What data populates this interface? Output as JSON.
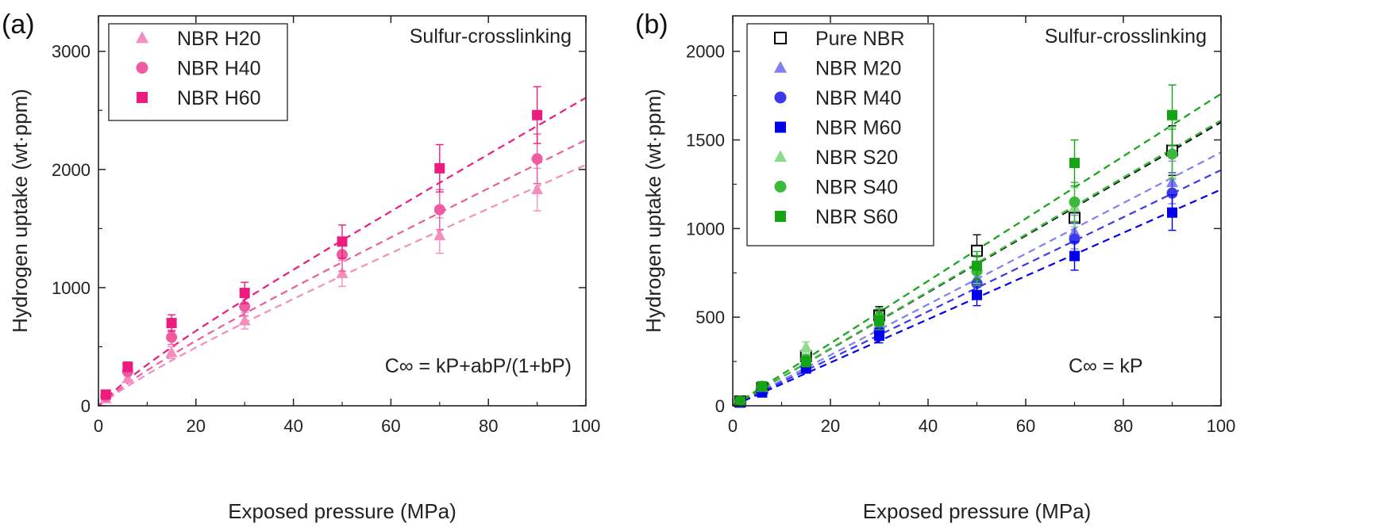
{
  "chart_data": [
    {
      "type": "scatter",
      "panel_label": "(a)",
      "xlabel": "Exposed pressure (MPa)",
      "ylabel": "Hydrogen uptake (wt·ppm)",
      "xlim": [
        0,
        100
      ],
      "ylim": [
        0,
        3300
      ],
      "xticks": [
        0,
        20,
        40,
        60,
        80,
        100
      ],
      "yticks": [
        0,
        1000,
        2000,
        3000
      ],
      "grid": false,
      "legend_position": "top-left",
      "annotation_top": "Sulfur-crosslinking",
      "annotation_bottom": "C∞ = kP+abP/(1+bP)",
      "series": [
        {
          "name": "NBR H20",
          "marker": "triangle",
          "color": "#f58dbd",
          "filled": true,
          "x": [
            1.5,
            6,
            15,
            30,
            50,
            70,
            90
          ],
          "y": [
            60,
            230,
            450,
            720,
            1120,
            1440,
            1830
          ],
          "err": [
            20,
            30,
            50,
            70,
            110,
            150,
            180
          ],
          "fit": {
            "k": 18,
            "a": 300,
            "b": 0.04
          }
        },
        {
          "name": "NBR H40",
          "marker": "circle",
          "color": "#ef5ba1",
          "filled": true,
          "x": [
            1.5,
            6,
            15,
            30,
            50,
            70,
            90
          ],
          "y": [
            80,
            290,
            580,
            840,
            1280,
            1660,
            2090
          ],
          "err": [
            20,
            35,
            60,
            80,
            140,
            170,
            210
          ],
          "fit": {
            "k": 20,
            "a": 300,
            "b": 0.05
          }
        },
        {
          "name": "NBR H60",
          "marker": "square",
          "color": "#ec1c7f",
          "filled": true,
          "x": [
            1.5,
            6,
            15,
            30,
            50,
            70,
            90
          ],
          "y": [
            95,
            330,
            700,
            955,
            1390,
            2010,
            2460
          ],
          "err": [
            20,
            40,
            70,
            90,
            140,
            200,
            240
          ],
          "fit": {
            "k": 23.5,
            "a": 300,
            "b": 0.06
          }
        }
      ]
    },
    {
      "type": "scatter",
      "panel_label": "(b)",
      "xlabel": "Exposed pressure (MPa)",
      "ylabel": "Hydrogen uptake (wt·ppm)",
      "xlim": [
        0,
        100
      ],
      "ylim": [
        0,
        2200
      ],
      "xticks": [
        0,
        20,
        40,
        60,
        80,
        100
      ],
      "yticks": [
        0,
        500,
        1000,
        1500,
        2000
      ],
      "grid": false,
      "legend_position": "top-left",
      "annotation_top": "Sulfur-crosslinking",
      "annotation_bottom": "C∞ = kP",
      "series": [
        {
          "name": "Pure NBR",
          "marker": "square",
          "color": "#000000",
          "filled": false,
          "x": [
            1.5,
            6,
            15,
            30,
            50,
            70,
            90
          ],
          "y": [
            25,
            100,
            280,
            510,
            875,
            1060,
            1440
          ],
          "err": [
            10,
            15,
            30,
            50,
            90,
            100,
            140
          ],
          "fit": {
            "k": 16
          }
        },
        {
          "name": "NBR M20",
          "marker": "triangle",
          "color": "#8080f0",
          "filled": true,
          "x": [
            1.5,
            6,
            15,
            30,
            50,
            70,
            90
          ],
          "y": [
            22,
            90,
            240,
            460,
            720,
            980,
            1260
          ],
          "err": [
            10,
            15,
            25,
            45,
            70,
            95,
            120
          ],
          "fit": {
            "k": 14.3
          }
        },
        {
          "name": "NBR M40",
          "marker": "circle",
          "color": "#3a3ae8",
          "filled": true,
          "x": [
            1.5,
            6,
            15,
            30,
            50,
            70,
            90
          ],
          "y": [
            20,
            85,
            220,
            420,
            690,
            940,
            1200
          ],
          "err": [
            10,
            15,
            25,
            40,
            65,
            90,
            115
          ],
          "fit": {
            "k": 13.3
          }
        },
        {
          "name": "NBR M60",
          "marker": "square",
          "color": "#0000ee",
          "filled": true,
          "x": [
            1.5,
            6,
            15,
            30,
            50,
            70,
            90
          ],
          "y": [
            18,
            75,
            210,
            395,
            625,
            845,
            1090
          ],
          "err": [
            10,
            15,
            25,
            40,
            60,
            80,
            100
          ],
          "fit": {
            "k": 12.2
          }
        },
        {
          "name": "NBR S20",
          "marker": "triangle",
          "color": "#8fd98f",
          "filled": true,
          "x": [
            1.5,
            6,
            15,
            30,
            50,
            70,
            90
          ],
          "y": [
            25,
            105,
            330,
            500,
            770,
            1120,
            1430
          ],
          "err": [
            10,
            15,
            30,
            50,
            80,
            110,
            140
          ],
          "fit": {
            "k": 16.1
          }
        },
        {
          "name": "NBR S40",
          "marker": "circle",
          "color": "#3cb83c",
          "filled": true,
          "x": [
            1.5,
            6,
            15,
            30,
            50,
            70,
            90
          ],
          "y": [
            25,
            110,
            260,
            500,
            760,
            1150,
            1420
          ],
          "err": [
            10,
            15,
            30,
            50,
            80,
            110,
            140
          ],
          "fit": {
            "k": 16.1
          }
        },
        {
          "name": "NBR S60",
          "marker": "square",
          "color": "#16a316",
          "filled": true,
          "x": [
            1.5,
            6,
            15,
            30,
            50,
            70,
            90
          ],
          "y": [
            25,
            110,
            250,
            480,
            790,
            1370,
            1640
          ],
          "err": [
            10,
            15,
            30,
            50,
            80,
            130,
            170
          ],
          "fit": {
            "k": 17.6
          }
        }
      ]
    }
  ]
}
